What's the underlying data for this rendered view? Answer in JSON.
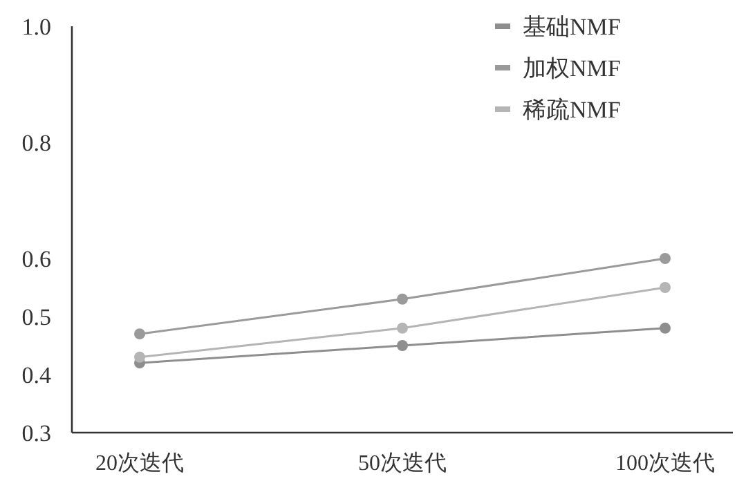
{
  "chart_data": {
    "type": "line",
    "categories": [
      "20次迭代",
      "50次迭代",
      "100次迭代"
    ],
    "series": [
      {
        "name": "基础NMF",
        "color": "#8e8e8e",
        "values": [
          0.42,
          0.45,
          0.48
        ]
      },
      {
        "name": "加权NMF",
        "color": "#9a9a9a",
        "values": [
          0.47,
          0.53,
          0.6
        ]
      },
      {
        "name": "稀疏NMF",
        "color": "#b5b5b5",
        "values": [
          0.43,
          0.48,
          0.55
        ]
      }
    ],
    "ylim": [
      0.3,
      1.0
    ],
    "yticks": [
      0.3,
      0.4,
      0.5,
      0.6,
      0.8,
      {
        "value": 1.0,
        "label": "1.0"
      }
    ],
    "legend": "top right",
    "marker": "circle",
    "line_style": "solid"
  }
}
